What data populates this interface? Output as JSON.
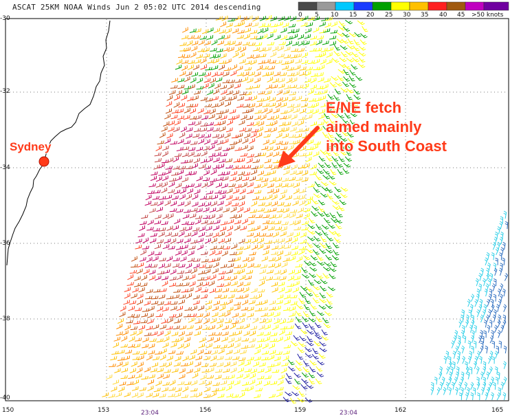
{
  "title": "ASCAT 25KM NOAA Winds  Jun  2 05:02 UTC 2014 descending",
  "legend": {
    "labels": [
      "0",
      "5",
      "10",
      "15",
      "20",
      "25",
      "30",
      "35",
      "40",
      "45",
      ">50 knots"
    ],
    "colors": [
      "#4a4a4a",
      "#9a9a9a",
      "#00c8ff",
      "#1a3cff",
      "#00a000",
      "#ffff00",
      "#ffc000",
      "#ff2020",
      "#a05a10",
      "#c000c0",
      "#7000a0"
    ]
  },
  "axes": {
    "y_labels": [
      "-30",
      "-32",
      "-34",
      "-36",
      "-38",
      "-40"
    ],
    "x_labels": [
      "150",
      "153",
      "156",
      "159",
      "162",
      "165"
    ],
    "pass_times": [
      "23:04",
      "23:04"
    ]
  },
  "annotation": {
    "lines": [
      "E/NE fetch",
      "aimed mainly",
      "into South Coast"
    ]
  },
  "place": {
    "name": "Sydney"
  },
  "colors": {
    "annotation": "#ff3b1a",
    "coast": "#000000",
    "grid": "#666666"
  }
}
